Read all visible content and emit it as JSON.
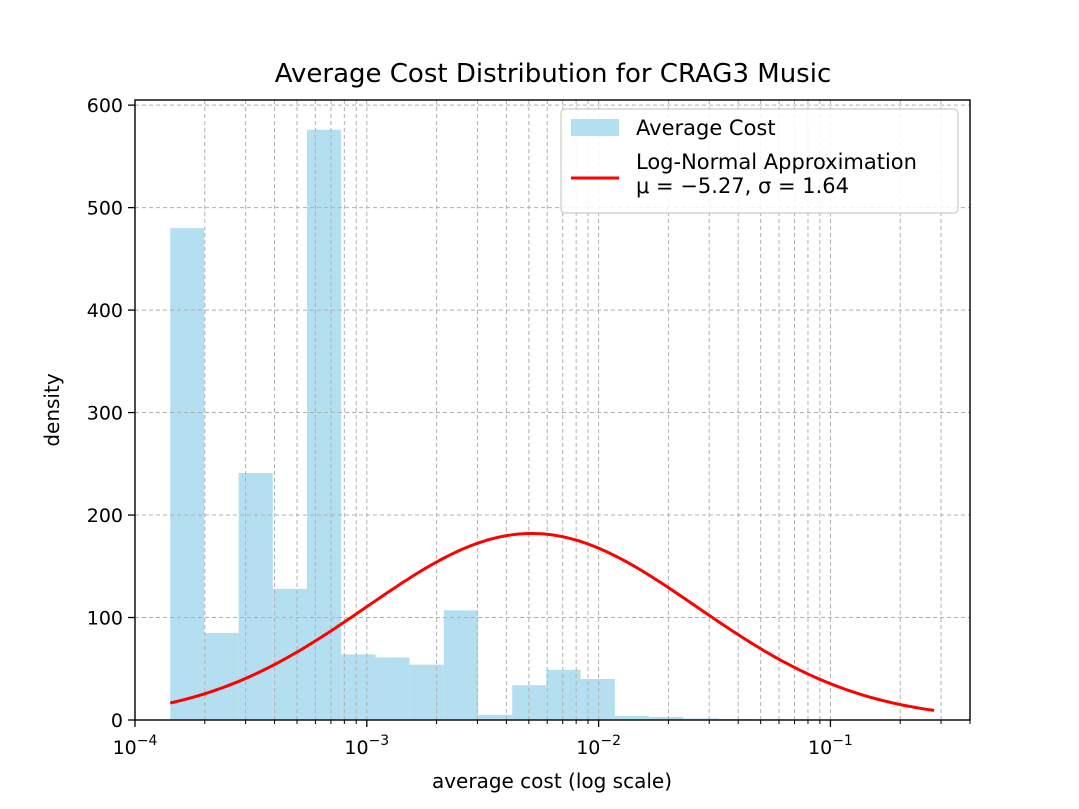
{
  "chart_data": {
    "type": "histogram",
    "title": "Average Cost Distribution for CRAG3 Music",
    "xlabel": "average cost (log scale)",
    "ylabel": "density",
    "xscale": "log",
    "xlim": [
      0.0001,
      0.4
    ],
    "ylim": [
      0,
      605
    ],
    "grid": true,
    "legend_position": "top-right",
    "x_ticks": [
      {
        "exp": "-4",
        "value": 0.0001
      },
      {
        "exp": "-3",
        "value": 0.001
      },
      {
        "exp": "-2",
        "value": 0.01
      },
      {
        "exp": "-1",
        "value": 0.1
      }
    ],
    "y_ticks": [
      0,
      100,
      200,
      300,
      400,
      500,
      600
    ],
    "series": [
      {
        "name": "Average Cost",
        "kind": "histogram",
        "color": "#b4dff0",
        "bins": [
          {
            "x0": 0.000142,
            "x1": 0.000199,
            "value": 480
          },
          {
            "x0": 0.000199,
            "x1": 0.00028,
            "value": 85
          },
          {
            "x0": 0.00028,
            "x1": 0.000393,
            "value": 241
          },
          {
            "x0": 0.000393,
            "x1": 0.000552,
            "value": 128
          },
          {
            "x0": 0.000552,
            "x1": 0.000775,
            "value": 576
          },
          {
            "x0": 0.000775,
            "x1": 0.00109,
            "value": 64
          },
          {
            "x0": 0.00109,
            "x1": 0.00153,
            "value": 61
          },
          {
            "x0": 0.00153,
            "x1": 0.00215,
            "value": 54
          },
          {
            "x0": 0.00215,
            "x1": 0.00302,
            "value": 107
          },
          {
            "x0": 0.00302,
            "x1": 0.00424,
            "value": 5
          },
          {
            "x0": 0.00424,
            "x1": 0.00595,
            "value": 34
          },
          {
            "x0": 0.00595,
            "x1": 0.00836,
            "value": 49
          },
          {
            "x0": 0.00836,
            "x1": 0.01175,
            "value": 40
          },
          {
            "x0": 0.01175,
            "x1": 0.0165,
            "value": 4
          },
          {
            "x0": 0.0165,
            "x1": 0.0232,
            "value": 3
          },
          {
            "x0": 0.0232,
            "x1": 0.0326,
            "value": 1.5
          },
          {
            "x0": 0.0326,
            "x1": 0.0458,
            "value": 1
          },
          {
            "x0": 0.0458,
            "x1": 0.0643,
            "value": 0.8
          },
          {
            "x0": 0.0643,
            "x1": 0.0903,
            "value": 0.6
          },
          {
            "x0": 0.0903,
            "x1": 0.1269,
            "value": 0.4
          },
          {
            "x0": 0.1269,
            "x1": 0.1783,
            "value": 0.3
          },
          {
            "x0": 0.1783,
            "x1": 0.2504,
            "value": 0.2
          }
        ]
      },
      {
        "name": "Log-Normal Approximation",
        "name_line2": "μ = −5.27, σ = 1.64",
        "kind": "line",
        "color": "#ff0000",
        "mu": -5.27,
        "sigma": 1.64,
        "peak_density": 182,
        "x_range": [
          0.000142,
          0.28
        ]
      }
    ]
  }
}
